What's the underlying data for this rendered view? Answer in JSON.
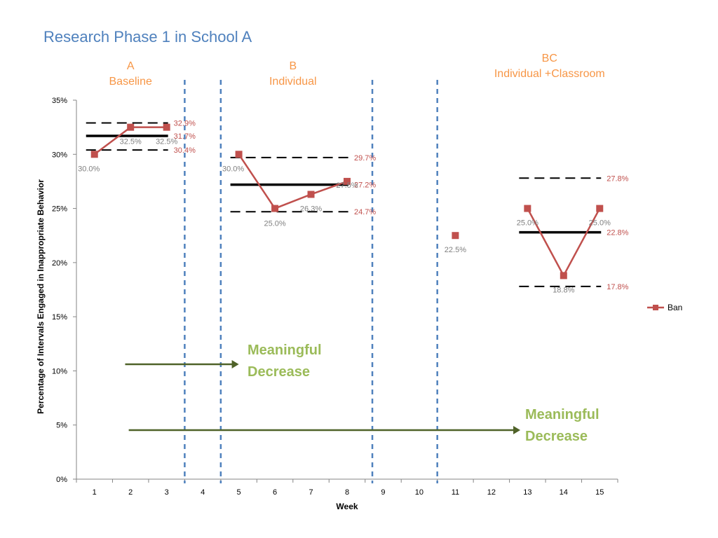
{
  "title": "Research Phase 1 in School A",
  "phases": [
    {
      "lines": [
        "A",
        "Baseline"
      ],
      "start": 1,
      "end": 3
    },
    {
      "lines": [
        "B",
        "Individual"
      ],
      "start": 5,
      "end": 8
    },
    {
      "lines": [
        "BC",
        "Individual +Classroom"
      ],
      "start": 13,
      "end": 15
    }
  ],
  "annotations": [
    {
      "lines": [
        "Meaningful",
        "Decrease"
      ],
      "arrow_from_week": 1.85,
      "arrow_to_week": 5.0
    },
    {
      "lines": [
        "Meaningful",
        "Decrease"
      ],
      "arrow_from_week": 1.95,
      "arrow_to_week": 12.8
    }
  ],
  "colors": {
    "series": "#c0504d",
    "point_label": "#7f7f7f",
    "line_label": "#c0504d",
    "phase_label": "#f79646",
    "annotation": "#9bbb59",
    "arrow": "#4f6228",
    "divider": "#4f81bd",
    "title": "#4f81bd"
  },
  "chart_data": {
    "type": "line",
    "xlabel": "Week",
    "ylabel": "Percentage of Intervals Engaged in Inappropriate Behavior",
    "categories": [
      "1",
      "2",
      "3",
      "4",
      "5",
      "6",
      "7",
      "8",
      "9",
      "10",
      "11",
      "12",
      "13",
      "14",
      "15"
    ],
    "ylim": [
      0,
      35
    ],
    "yticks": [
      "0%",
      "5%",
      "10%",
      "15%",
      "20%",
      "25%",
      "30%",
      "35%"
    ],
    "legend": {
      "position": "right"
    },
    "series": [
      {
        "name": "Ban",
        "segments": [
          [
            {
              "x": 1,
              "y": 30.0,
              "label": "30.0%"
            },
            {
              "x": 2,
              "y": 32.5,
              "label": "32.5%"
            },
            {
              "x": 3,
              "y": 32.5,
              "label": "32.5%"
            }
          ],
          [
            {
              "x": 5,
              "y": 30.0,
              "label": "30.0%"
            },
            {
              "x": 6,
              "y": 25.0,
              "label": "25.0%"
            },
            {
              "x": 7,
              "y": 26.3,
              "label": "26.3%"
            },
            {
              "x": 8,
              "y": 27.5,
              "label": "27.5%"
            }
          ],
          [
            {
              "x": 11,
              "y": 22.5,
              "label": "22.5%"
            }
          ],
          [
            {
              "x": 13,
              "y": 25.0,
              "label": "25.0%"
            },
            {
              "x": 14,
              "y": 18.8,
              "label": "18.8%"
            },
            {
              "x": 15,
              "y": 25.0,
              "label": "25.0%"
            }
          ]
        ]
      }
    ],
    "reference_lines": [
      {
        "style": "dashed",
        "y": 32.9,
        "x_start": 1,
        "x_end": 3,
        "label": "32.9%"
      },
      {
        "style": "solid",
        "y": 31.7,
        "x_start": 1,
        "x_end": 3,
        "label": "31.7%"
      },
      {
        "style": "dashed",
        "y": 30.4,
        "x_start": 1,
        "x_end": 3,
        "label": "30.4%"
      },
      {
        "style": "dashed",
        "y": 29.7,
        "x_start": 5,
        "x_end": 8,
        "label": "29.7%"
      },
      {
        "style": "solid",
        "y": 27.2,
        "x_start": 5,
        "x_end": 8,
        "label": "27.2%"
      },
      {
        "style": "dashed",
        "y": 24.7,
        "x_start": 5,
        "x_end": 8,
        "label": "24.7%"
      },
      {
        "style": "dashed",
        "y": 27.8,
        "x_start": 13,
        "x_end": 15,
        "label": "27.8%"
      },
      {
        "style": "solid",
        "y": 22.8,
        "x_start": 13,
        "x_end": 15,
        "label": "22.8%"
      },
      {
        "style": "dashed",
        "y": 17.8,
        "x_start": 13,
        "x_end": 15,
        "label": "17.8%"
      }
    ],
    "phase_dividers": [
      3.5,
      4.5,
      8.7,
      10.5
    ]
  }
}
